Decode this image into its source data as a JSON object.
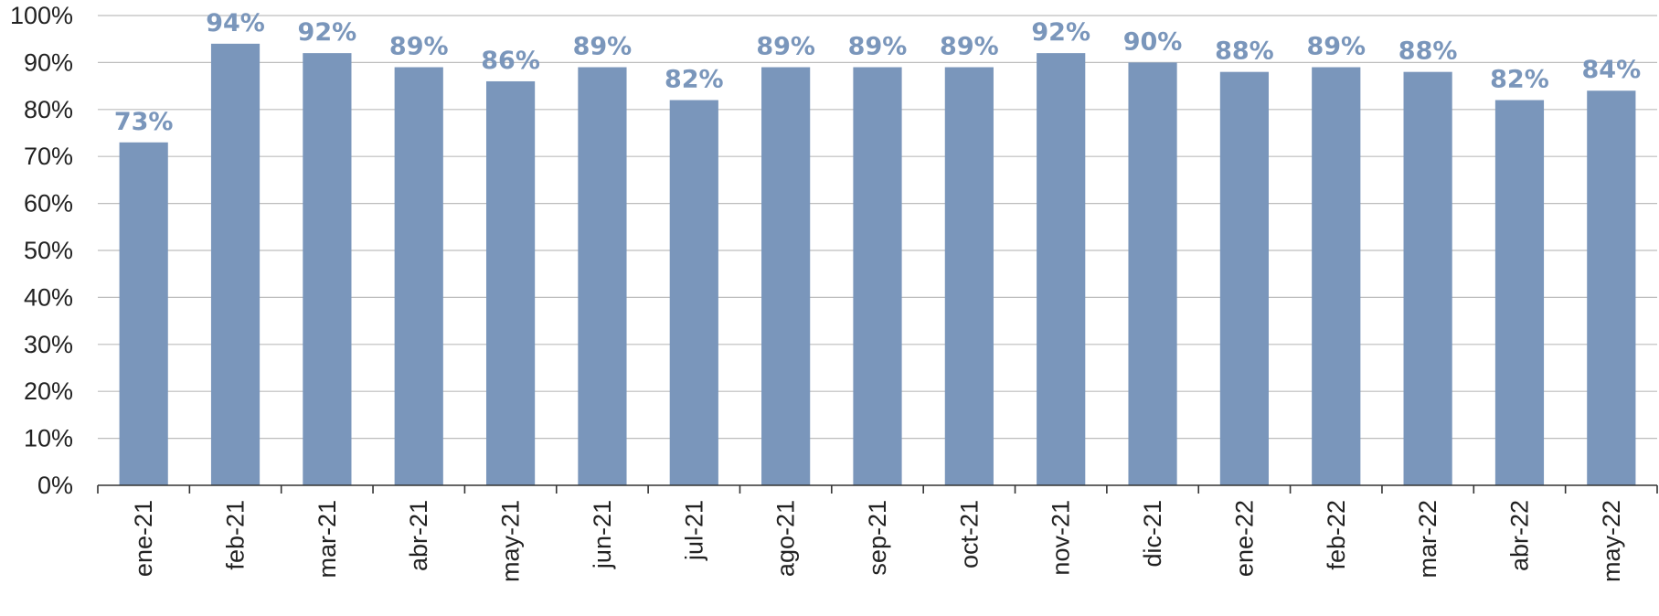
{
  "chart_data": {
    "type": "bar",
    "title": "",
    "xlabel": "",
    "ylabel": "",
    "ylim": [
      0,
      100
    ],
    "y_ticks": [
      "0%",
      "10%",
      "20%",
      "30%",
      "40%",
      "50%",
      "60%",
      "70%",
      "80%",
      "90%",
      "100%"
    ],
    "y_tick_values": [
      0,
      10,
      20,
      30,
      40,
      50,
      60,
      70,
      80,
      90,
      100
    ],
    "grid": true,
    "bar_color": "#7a96bb",
    "label_color": "#7a96bb",
    "categories": [
      "ene-21",
      "feb-21",
      "mar-21",
      "abr-21",
      "may-21",
      "jun-21",
      "jul-21",
      "ago-21",
      "sep-21",
      "oct-21",
      "nov-21",
      "dic-21",
      "ene-22",
      "feb-22",
      "mar-22",
      "abr-22",
      "may-22"
    ],
    "values": [
      73,
      94,
      92,
      89,
      86,
      89,
      82,
      89,
      89,
      89,
      92,
      90,
      88,
      89,
      88,
      82,
      84
    ],
    "data_labels": [
      "73%",
      "94%",
      "92%",
      "89%",
      "86%",
      "89%",
      "82%",
      "89%",
      "89%",
      "89%",
      "92%",
      "90%",
      "88%",
      "89%",
      "88%",
      "82%",
      "84%"
    ]
  }
}
